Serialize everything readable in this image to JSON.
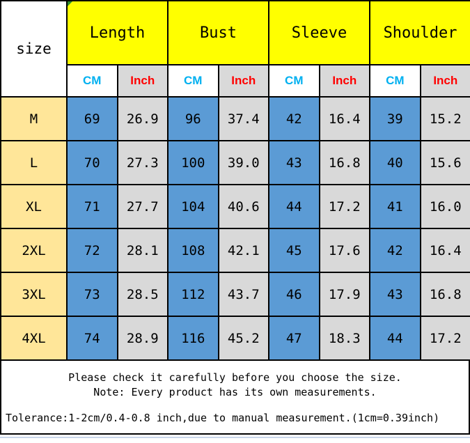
{
  "table": {
    "corner_label": "size",
    "groups": [
      {
        "label": "Length"
      },
      {
        "label": "Bust"
      },
      {
        "label": "Sleeve"
      },
      {
        "label": "Shoulder"
      }
    ],
    "unit_cm": "CM",
    "unit_inch": "Inch",
    "rows": [
      {
        "size": "M",
        "values": [
          "69",
          "26.9",
          "96",
          "37.4",
          "42",
          "16.4",
          "39",
          "15.2"
        ]
      },
      {
        "size": "L",
        "values": [
          "70",
          "27.3",
          "100",
          "39.0",
          "43",
          "16.8",
          "40",
          "15.6"
        ]
      },
      {
        "size": "XL",
        "values": [
          "71",
          "27.7",
          "104",
          "40.6",
          "44",
          "17.2",
          "41",
          "16.0"
        ]
      },
      {
        "size": "2XL",
        "values": [
          "72",
          "28.1",
          "108",
          "42.1",
          "45",
          "17.6",
          "42",
          "16.4"
        ]
      },
      {
        "size": "3XL",
        "values": [
          "73",
          "28.5",
          "112",
          "43.7",
          "46",
          "17.9",
          "43",
          "16.8"
        ]
      },
      {
        "size": "4XL",
        "values": [
          "74",
          "28.9",
          "116",
          "45.2",
          "47",
          "18.3",
          "44",
          "17.2"
        ]
      }
    ]
  },
  "footer": {
    "line1": "Please check it carefully before you choose the size.",
    "line2": "Note: Every product has its own measurements.",
    "tolerance": "Tolerance:1-2cm/0.4-0.8 inch,due to manual measurement.(1cm=0.39inch)"
  },
  "colors": {
    "group_header_yellow": "#ffff00",
    "size_column_yellow": "#ffe699",
    "cm_cell_blue": "#5b9bd5",
    "inch_cell_gray": "#d9d9d9",
    "cm_text_blue": "#00b0f0",
    "inch_text_red": "#ff0000",
    "border_black": "#000000",
    "bottom_edge_blue": "#c9d6ea"
  }
}
